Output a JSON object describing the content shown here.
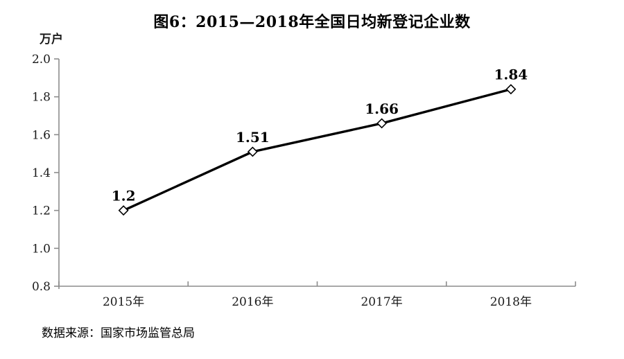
{
  "page": {
    "title": "图6：2015—2018年全国日均新登记企业数",
    "source_note": "数据来源：国家市场监管总局"
  },
  "chart_data": {
    "type": "line",
    "title": "图6：2015—2018年全国日均新登记企业数",
    "unit_label": "万户",
    "xlabel": "",
    "ylabel": "万户",
    "categories": [
      "2015年",
      "2016年",
      "2017年",
      "2018年"
    ],
    "values": [
      1.2,
      1.51,
      1.66,
      1.84
    ],
    "data_labels": [
      "1.2",
      "1.51",
      "1.66",
      "1.84"
    ],
    "ylim": [
      0.8,
      2.0
    ],
    "ytick_step": 0.2,
    "yticks": [
      "0.8",
      "1.0",
      "1.2",
      "1.4",
      "1.6",
      "1.8",
      "2.0"
    ],
    "grid": false,
    "legend_position": "none",
    "marker": "hollow-diamond",
    "line_color": "#000000",
    "marker_fill": "#ffffff",
    "axis_color": "#8c8c8c",
    "text_color": "#1a1a1a",
    "source_note": "数据来源：国家市场监管总局"
  }
}
